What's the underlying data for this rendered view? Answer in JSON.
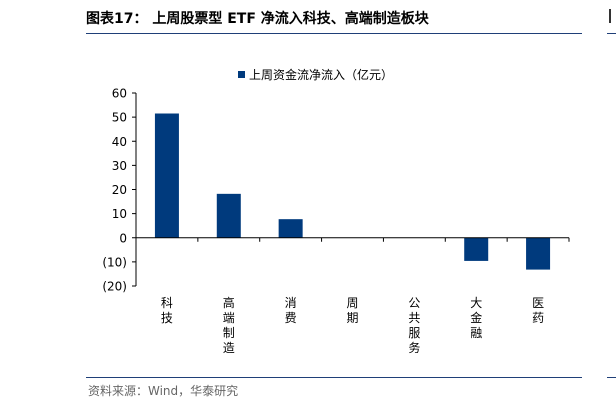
{
  "figure": {
    "title": "图表17：   上周股票型 ETF 净流入科技、高端制造板块",
    "source": "资料来源：Wind，华泰研究"
  },
  "colors": {
    "bar": "#003a7d",
    "axis": "#000000",
    "title_rule": "#1f3f78"
  },
  "chart_data": {
    "type": "bar",
    "categories": [
      "科技",
      "高端制造",
      "消费",
      "周期",
      "公共服务",
      "大金融",
      "医药"
    ],
    "series": [
      {
        "name": "上周资金流净流入（亿元）",
        "values": [
          51.5,
          18.2,
          7.7,
          0,
          0,
          -9.6,
          -13.2
        ]
      }
    ],
    "yticks": [
      "60",
      "50",
      "40",
      "30",
      "20",
      "10",
      "0",
      "(10)",
      "(20)"
    ],
    "ylim": [
      -20,
      60
    ],
    "legend_position": "top",
    "grid": false
  }
}
